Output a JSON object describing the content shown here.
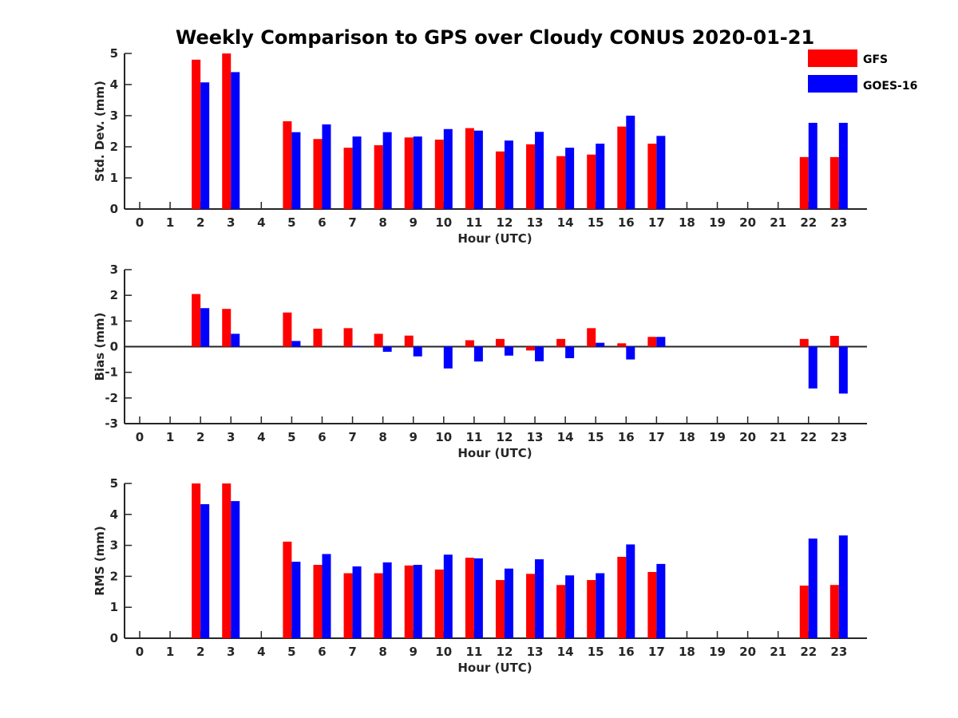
{
  "title": "Weekly Comparison to GPS over Cloudy CONUS 2020-01-21",
  "legend": {
    "items": [
      {
        "label": "GFS",
        "color": "#ff0000"
      },
      {
        "label": "GOES-16",
        "color": "#0000ff"
      }
    ]
  },
  "colors": {
    "gfs": "#ff0000",
    "goes16": "#0000ff",
    "axis": "#262626"
  },
  "chart_data": [
    {
      "type": "bar",
      "title": "Weekly Comparison to GPS over Cloudy CONUS 2020-01-21",
      "xlabel": "Hour (UTC)",
      "ylabel": "Std. Dev. (mm)",
      "ylim": [
        0,
        5
      ],
      "yticks": [
        0,
        1,
        2,
        3,
        4,
        5
      ],
      "categories": [
        "0",
        "1",
        "2",
        "3",
        "4",
        "5",
        "6",
        "7",
        "8",
        "9",
        "10",
        "11",
        "12",
        "13",
        "14",
        "15",
        "16",
        "17",
        "18",
        "19",
        "20",
        "21",
        "22",
        "23"
      ],
      "series": [
        {
          "name": "GFS",
          "values": [
            null,
            null,
            4.8,
            5.0,
            null,
            2.82,
            2.25,
            1.97,
            2.05,
            2.3,
            2.23,
            2.6,
            1.85,
            2.08,
            1.7,
            1.75,
            2.65,
            2.1,
            null,
            null,
            null,
            null,
            1.67,
            1.67
          ]
        },
        {
          "name": "GOES-16",
          "values": [
            null,
            null,
            4.07,
            4.4,
            null,
            2.47,
            2.72,
            2.33,
            2.47,
            2.33,
            2.57,
            2.52,
            2.2,
            2.48,
            1.97,
            2.1,
            3.0,
            2.35,
            null,
            null,
            null,
            null,
            2.77,
            2.77
          ]
        }
      ]
    },
    {
      "type": "bar",
      "xlabel": "Hour (UTC)",
      "ylabel": "Bias (mm)",
      "ylim": [
        -3,
        3
      ],
      "yticks": [
        -3,
        -2,
        -1,
        0,
        1,
        2,
        3
      ],
      "categories": [
        "0",
        "1",
        "2",
        "3",
        "4",
        "5",
        "6",
        "7",
        "8",
        "9",
        "10",
        "11",
        "12",
        "13",
        "14",
        "15",
        "16",
        "17",
        "18",
        "19",
        "20",
        "21",
        "22",
        "23"
      ],
      "series": [
        {
          "name": "GFS",
          "values": [
            null,
            null,
            2.05,
            1.47,
            null,
            1.33,
            0.7,
            0.72,
            0.5,
            0.43,
            null,
            0.25,
            0.3,
            -0.15,
            0.3,
            0.72,
            0.13,
            0.38,
            null,
            null,
            null,
            null,
            0.3,
            0.42
          ]
        },
        {
          "name": "GOES-16",
          "values": [
            null,
            null,
            1.5,
            0.5,
            null,
            0.22,
            null,
            0.03,
            -0.2,
            -0.38,
            -0.85,
            -0.58,
            -0.35,
            -0.57,
            -0.45,
            0.15,
            -0.5,
            0.38,
            null,
            null,
            null,
            null,
            -1.63,
            -1.83
          ]
        }
      ]
    },
    {
      "type": "bar",
      "xlabel": "Hour (UTC)",
      "ylabel": "RMS (mm)",
      "ylim": [
        0,
        5
      ],
      "yticks": [
        0,
        1,
        2,
        3,
        4,
        5
      ],
      "categories": [
        "0",
        "1",
        "2",
        "3",
        "4",
        "5",
        "6",
        "7",
        "8",
        "9",
        "10",
        "11",
        "12",
        "13",
        "14",
        "15",
        "16",
        "17",
        "18",
        "19",
        "20",
        "21",
        "22",
        "23"
      ],
      "series": [
        {
          "name": "GFS",
          "values": [
            null,
            null,
            5.0,
            5.0,
            null,
            3.12,
            2.37,
            2.1,
            2.1,
            2.35,
            2.22,
            2.6,
            1.88,
            2.08,
            1.72,
            1.88,
            2.63,
            2.14,
            null,
            null,
            null,
            null,
            1.7,
            1.72
          ]
        },
        {
          "name": "GOES-16",
          "values": [
            null,
            null,
            4.33,
            4.43,
            null,
            2.47,
            2.72,
            2.32,
            2.45,
            2.37,
            2.7,
            2.58,
            2.25,
            2.55,
            2.03,
            2.1,
            3.03,
            2.4,
            null,
            null,
            null,
            null,
            3.22,
            3.32
          ]
        }
      ]
    }
  ]
}
